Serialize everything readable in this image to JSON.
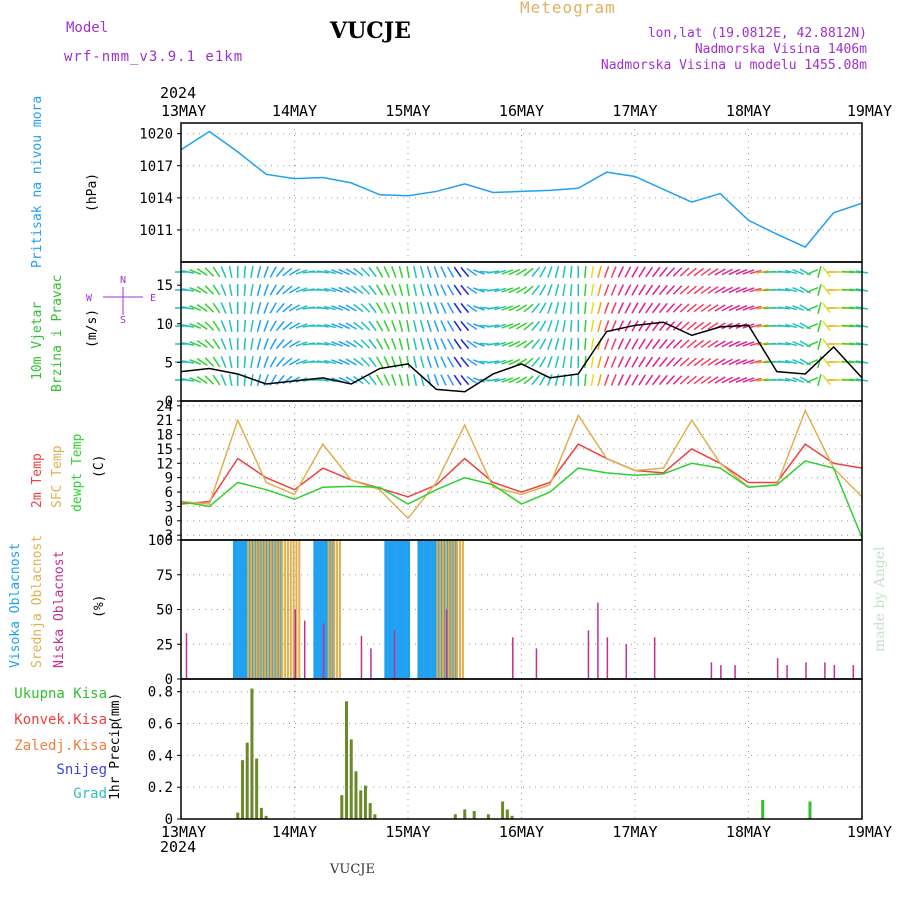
{
  "header": {
    "model_label": "Model",
    "model_name": "wrf-nmm_v3.9.1 e1km",
    "station": "VUCJE",
    "product": "Meteogram",
    "lonlat": "lon,lat (19.0812E, 42.8812N)",
    "elevation": "Nadmorska Visina 1406m",
    "model_elevation": "Nadmorska Visina u modelu 1455.08m",
    "footer_station": "VUCJE",
    "credit": "made by Angel",
    "year": "2024"
  },
  "colors": {
    "pressure": "#20a0f0",
    "temp2m": "#f04040",
    "sfc_temp": "#e0b050",
    "dewpoint": "#30d030",
    "cloud_high": "#20a0f0",
    "cloud_mid": "#e0b050",
    "cloud_low": "#c03090",
    "precip_total": "#30c030",
    "precip_conv": "#f04040",
    "precip_frozen": "#f08040",
    "snow": "#4040e0",
    "hail": "#30c0c0",
    "title_purple": "#a030d0"
  },
  "chart_data": [
    {
      "type": "line",
      "id": "pressure",
      "ylabel": "Pritisak na nivou mora",
      "unit": "(hPa)",
      "yticks": [
        1011,
        1014,
        1017,
        1020
      ],
      "ylim": [
        1008,
        1021
      ],
      "x_days": [
        "13MAY",
        "14MAY",
        "15MAY",
        "16MAY",
        "17MAY",
        "18MAY",
        "19MAY"
      ],
      "x_hours": [
        0,
        6,
        12,
        18,
        24,
        30,
        36,
        42,
        48,
        54,
        60,
        66,
        72,
        78,
        84,
        90,
        96,
        102,
        108,
        114,
        120,
        126,
        132,
        138,
        144
      ],
      "values": [
        1018.5,
        1020.2,
        1018.3,
        1016.2,
        1015.8,
        1015.9,
        1015.4,
        1014.3,
        1014.2,
        1014.6,
        1015.3,
        1014.5,
        1014.6,
        1014.7,
        1014.9,
        1016.4,
        1016.0,
        1014.8,
        1013.6,
        1014.4,
        1011.9,
        1010.6,
        1009.4,
        1012.6,
        1013.5
      ]
    },
    {
      "type": "line",
      "id": "wind",
      "ylabel": "10m Vjetar Brzina i Pravac",
      "unit": "(m/s)",
      "compass": [
        "N",
        "E",
        "S",
        "W"
      ],
      "yticks": [
        0,
        5,
        10,
        15
      ],
      "ylim": [
        0,
        18
      ],
      "x_hours": [
        0,
        6,
        12,
        18,
        24,
        30,
        36,
        42,
        48,
        54,
        60,
        66,
        72,
        78,
        84,
        90,
        96,
        102,
        108,
        114,
        120,
        126,
        132,
        138,
        144
      ],
      "speed": [
        3.8,
        4.2,
        3.5,
        2.2,
        2.6,
        3.0,
        2.2,
        4.2,
        4.8,
        1.5,
        1.2,
        3.5,
        4.8,
        3.0,
        3.5,
        9.0,
        9.8,
        10.2,
        8.5,
        9.6,
        9.8,
        3.8,
        3.5,
        7.0,
        3.0
      ],
      "direction_deg": [
        90,
        135,
        180,
        200,
        240,
        280,
        300,
        330,
        350,
        340,
        320,
        260,
        240,
        200,
        180,
        200,
        210,
        220,
        230,
        240,
        250,
        270,
        300,
        90,
        100
      ]
    },
    {
      "type": "line",
      "id": "temperature",
      "ylabel_lines": [
        "2m Temp",
        "SFC Temp",
        "dewpt Temp"
      ],
      "unit": "(C)",
      "yticks": [
        -3,
        0,
        3,
        6,
        9,
        12,
        15,
        18,
        21,
        24
      ],
      "ylim": [
        -4,
        25
      ],
      "x_hours": [
        0,
        6,
        12,
        18,
        24,
        30,
        36,
        42,
        48,
        54,
        60,
        66,
        72,
        78,
        84,
        90,
        96,
        102,
        108,
        114,
        120,
        126,
        132,
        138,
        144
      ],
      "series": [
        {
          "name": "2m Temp",
          "values": [
            3.5,
            4.0,
            13.0,
            9.0,
            6.5,
            11.0,
            8.5,
            6.8,
            5.0,
            7.5,
            13.0,
            8.0,
            6.0,
            8.0,
            16.0,
            13.0,
            10.5,
            10.0,
            15.0,
            12.0,
            8.0,
            8.0,
            16.0,
            12.0,
            11.0
          ]
        },
        {
          "name": "SFC Temp",
          "values": [
            4.0,
            3.5,
            21.0,
            8.0,
            5.5,
            16.0,
            8.5,
            6.5,
            0.5,
            8.0,
            20.0,
            7.0,
            5.5,
            7.5,
            22.0,
            13.0,
            10.5,
            11.0,
            21.0,
            12.0,
            7.0,
            7.5,
            23.0,
            11.0,
            5.0
          ]
        },
        {
          "name": "dewpt Temp",
          "values": [
            4.0,
            3.0,
            8.0,
            6.5,
            4.5,
            7.0,
            7.2,
            7.0,
            3.5,
            6.5,
            9.0,
            7.5,
            3.5,
            6.0,
            11.0,
            10.0,
            9.5,
            9.8,
            12.0,
            11.0,
            7.0,
            7.5,
            12.5,
            11.0,
            -3.5
          ]
        }
      ]
    },
    {
      "type": "bar",
      "id": "clouds",
      "ylabel_lines": [
        "Visoka Oblacnost",
        "Srednja Oblacnost",
        "Niska Oblacnost"
      ],
      "unit": "(%)",
      "yticks": [
        0,
        25,
        50,
        75,
        100
      ],
      "ylim": [
        0,
        100
      ],
      "series": [
        {
          "name": "Visoka Oblacnost",
          "intervals": [
            [
              11,
              21,
              100
            ],
            [
              28,
              32,
              100
            ],
            [
              43,
              48,
              100
            ],
            [
              50,
              58,
              100
            ]
          ]
        },
        {
          "name": "Srednja Oblacnost",
          "intervals": [
            [
              14,
              25,
              100
            ],
            [
              31,
              34,
              100
            ],
            [
              54,
              60,
              100
            ]
          ]
        },
        {
          "name": "Niska Oblacnost",
          "bars": [
            [
              1,
              33
            ],
            [
              24,
              50
            ],
            [
              26,
              42
            ],
            [
              30,
              40
            ],
            [
              38,
              31
            ],
            [
              40,
              22
            ],
            [
              45,
              35
            ],
            [
              56,
              50
            ],
            [
              70,
              30
            ],
            [
              75,
              22
            ],
            [
              86,
              35
            ],
            [
              88,
              55
            ],
            [
              90,
              30
            ],
            [
              94,
              25
            ],
            [
              100,
              30
            ],
            [
              112,
              12
            ],
            [
              114,
              10
            ],
            [
              117,
              10
            ],
            [
              126,
              15
            ],
            [
              128,
              10
            ],
            [
              132,
              12
            ],
            [
              136,
              12
            ],
            [
              138,
              10
            ],
            [
              142,
              10
            ]
          ]
        }
      ]
    },
    {
      "type": "bar",
      "id": "precip",
      "ylabel": "1hr Precip",
      "unit": "(mm)",
      "legend": [
        "Ukupna Kisa",
        "Konvek.Kisa",
        "Zaledj.Kisa",
        "Snijeg",
        "Grad"
      ],
      "yticks": [
        0,
        0.2,
        0.4,
        0.6,
        0.8
      ],
      "ylim": [
        0,
        0.88
      ],
      "x_days": [
        "13MAY",
        "14MAY",
        "15MAY",
        "16MAY",
        "17MAY",
        "18MAY",
        "19MAY"
      ],
      "bars": [
        [
          12,
          0.04
        ],
        [
          13,
          0.37
        ],
        [
          14,
          0.48
        ],
        [
          15,
          0.82
        ],
        [
          16,
          0.38
        ],
        [
          17,
          0.07
        ],
        [
          18,
          0.02
        ],
        [
          34,
          0.15
        ],
        [
          35,
          0.74
        ],
        [
          36,
          0.5
        ],
        [
          37,
          0.3
        ],
        [
          38,
          0.18
        ],
        [
          39,
          0.21
        ],
        [
          40,
          0.1
        ],
        [
          41,
          0.03
        ],
        [
          58,
          0.03
        ],
        [
          60,
          0.06
        ],
        [
          62,
          0.05
        ],
        [
          65,
          0.03
        ],
        [
          68,
          0.11
        ],
        [
          69,
          0.06
        ],
        [
          70,
          0.02
        ],
        [
          123,
          0.12
        ],
        [
          133,
          0.11
        ]
      ]
    }
  ]
}
